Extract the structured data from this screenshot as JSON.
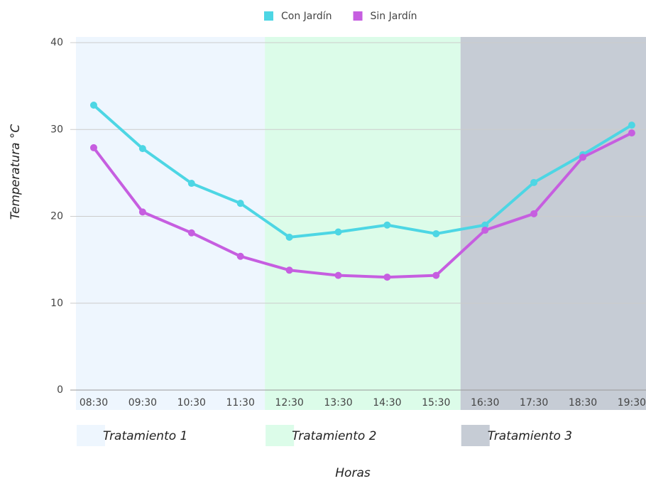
{
  "chart_data": {
    "type": "line",
    "x_label": "Horas",
    "y_label": "Temperatura °C",
    "categories": [
      "08:30",
      "09:30",
      "10:30",
      "11:30",
      "12:30",
      "13:30",
      "14:30",
      "15:30",
      "16:30",
      "17:30",
      "18:30",
      "19:30"
    ],
    "series": [
      {
        "name": "Con Jardín",
        "color": "#4dd6e4",
        "values": [
          32.8,
          27.8,
          23.8,
          21.5,
          17.6,
          18.2,
          19.0,
          18.0,
          19.0,
          23.9,
          27.1,
          30.5
        ]
      },
      {
        "name": "Sin Jardín",
        "color": "#c65ee0",
        "values": [
          27.9,
          20.5,
          18.1,
          15.4,
          13.8,
          13.2,
          13.0,
          13.2,
          18.4,
          20.3,
          26.8,
          29.6
        ]
      }
    ],
    "regions": [
      {
        "label": "Tratamiento 1",
        "from": "08:30",
        "to": "11:30",
        "color": "#eef6fe"
      },
      {
        "label": "Tratamiento 2",
        "from": "12:30",
        "to": "15:30",
        "color": "#dcfce9"
      },
      {
        "label": "Tratamiento 3",
        "from": "16:30",
        "to": "19:30",
        "color": "#c6ccd5"
      }
    ],
    "ylim": [
      0,
      40
    ],
    "yticks": [
      0,
      10,
      20,
      30,
      40
    ],
    "grid": true,
    "legend": "top"
  }
}
